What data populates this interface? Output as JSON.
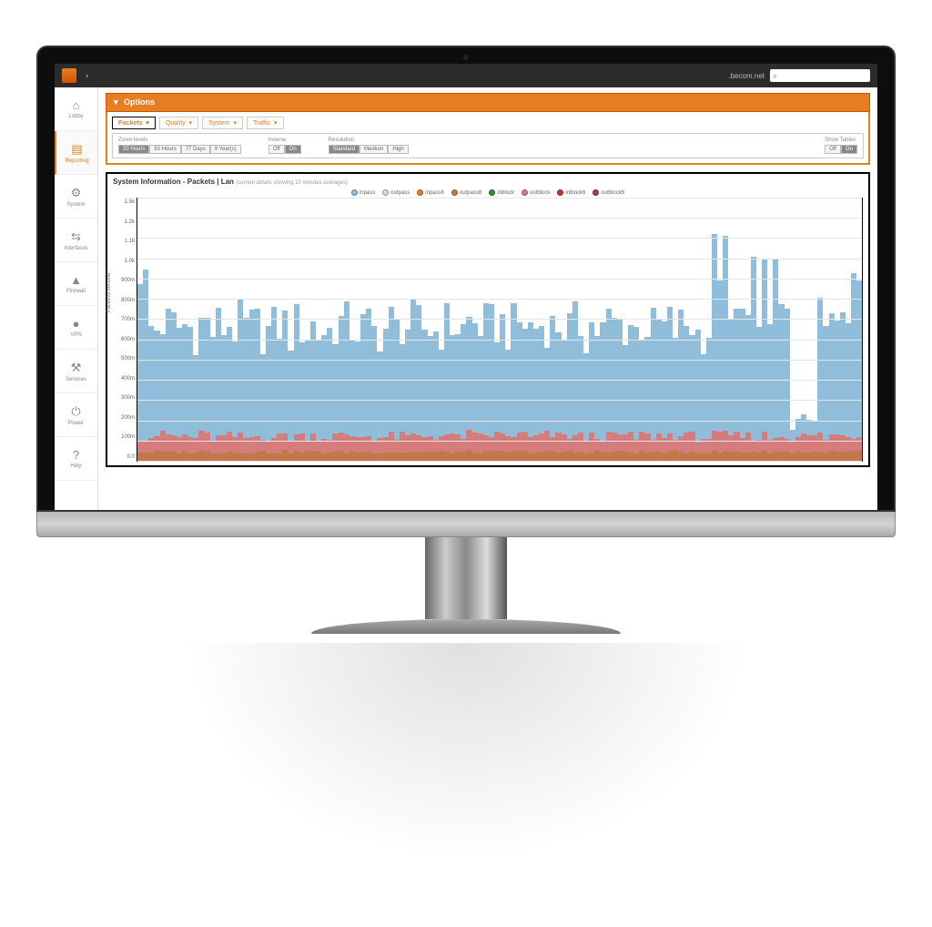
{
  "topbar": {
    "hostname": ".becom.net"
  },
  "sidebar": {
    "items": [
      {
        "icon": "⌂",
        "label": "Lobby",
        "active": false
      },
      {
        "icon": "▤",
        "label": "Reporting",
        "active": true
      },
      {
        "icon": "⚙",
        "label": "System",
        "active": false
      },
      {
        "icon": "⇆",
        "label": "Interfaces",
        "active": false
      },
      {
        "icon": "▲",
        "label": "Firewall",
        "active": false
      },
      {
        "icon": "●",
        "label": "VPN",
        "active": false
      },
      {
        "icon": "⚒",
        "label": "Services",
        "active": false
      },
      {
        "icon": "⏻",
        "label": "Power",
        "active": false
      },
      {
        "icon": "?",
        "label": "Help",
        "active": false
      }
    ]
  },
  "options": {
    "title": "Options",
    "tabs": [
      {
        "label": "Packets",
        "active": true
      },
      {
        "label": "Quality",
        "active": false
      },
      {
        "label": "System",
        "active": false
      },
      {
        "label": "Traffic",
        "active": false
      }
    ],
    "controls": {
      "zoom": {
        "label": "Zoom levels",
        "buttons": [
          "20 Hours",
          "50 Hours",
          "77 Days",
          "9 Year(s)"
        ],
        "active": 0
      },
      "inverse": {
        "label": "Inverse",
        "buttons": [
          "Off",
          "On"
        ],
        "active": 1
      },
      "resolution": {
        "label": "Resolution",
        "buttons": [
          "Standard",
          "Medium",
          "High"
        ],
        "active": 0
      },
      "tables": {
        "label": "Show Tables",
        "buttons": [
          "Off",
          "On"
        ],
        "active": 1
      }
    }
  },
  "chart": {
    "title": "System Information - Packets | Lan",
    "subtitle": "(current details showing 10 minutes averages)",
    "type": "stacked-bar",
    "ylabel": "Packets/Second",
    "ylim": [
      0,
      1.5
    ],
    "ytick_labels": [
      "1.5k",
      "1.2k",
      "1.1k",
      "1.0k",
      "900m",
      "800m",
      "700m",
      "600m",
      "500m",
      "400m",
      "300m",
      "200m",
      "100m",
      "0.0"
    ],
    "grid_color": "#e5e5e5",
    "background_color": "#ffffff",
    "colors": {
      "inpass": "#8fbdda",
      "outpass": "#c9ddec",
      "inpass6": "#e67e22",
      "outpass6": "#c27848",
      "inblock": "#3a8a3a",
      "outblock": "#d77c7c",
      "inblock6": "#c0392b",
      "outblock6": "#a04040"
    },
    "legend": [
      {
        "key": "inpass",
        "label": "inpass"
      },
      {
        "key": "outpass",
        "label": "outpass"
      },
      {
        "key": "inpass6",
        "label": "inpass6"
      },
      {
        "key": "outpass6",
        "label": "outpass6"
      },
      {
        "key": "inblock",
        "label": "inblock"
      },
      {
        "key": "outblock",
        "label": "outblock"
      },
      {
        "key": "inblock6",
        "label": "inblock6"
      },
      {
        "key": "outblock6",
        "label": "outblock6"
      }
    ],
    "columns": 130,
    "series": {
      "inpass_base": 0.62,
      "inpass_var": 0.3,
      "outblock_base": 0.06,
      "outblock_var": 0.06,
      "outpass6_base": 0.04,
      "outpass6_var": 0.02,
      "spikes": [
        0,
        1,
        103,
        104,
        105,
        108,
        110,
        112,
        114,
        128,
        129
      ],
      "spike_height": 0.35
    }
  }
}
